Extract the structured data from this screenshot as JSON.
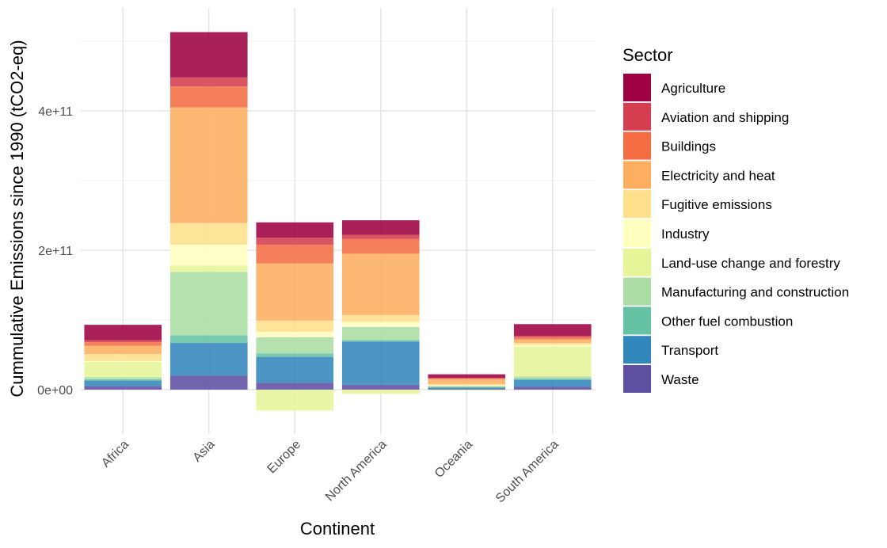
{
  "chart_data": {
    "type": "bar",
    "stacked": true,
    "xlabel": "Continent",
    "ylabel": "Cummulative Emissions since 1990 (tCO2-eq)",
    "ylim": [
      -40000000000,
      530000000000
    ],
    "y_ticks": [
      0,
      200000000000,
      400000000000
    ],
    "y_tick_labels": [
      "0e+00",
      "2e+11",
      "4e+11"
    ],
    "grid": true,
    "legend": {
      "title": "Sector",
      "placement": "right"
    },
    "categories": [
      "Africa",
      "Asia",
      "Europe",
      "North America",
      "Oceania",
      "South America"
    ],
    "series": [
      {
        "name": "Agriculture",
        "color": "#9E0142",
        "values": [
          22000000000,
          65000000000,
          22000000000,
          21000000000,
          5000000000,
          17000000000
        ]
      },
      {
        "name": "Aviation and shipping",
        "color": "#D53E4F",
        "values": [
          3000000000,
          13000000000,
          10000000000,
          6000000000,
          1000000000,
          2000000000
        ]
      },
      {
        "name": "Buildings",
        "color": "#F46D43",
        "values": [
          5000000000,
          30000000000,
          27000000000,
          21000000000,
          1000000000,
          3000000000
        ]
      },
      {
        "name": "Electricity and heat",
        "color": "#FDAE61",
        "values": [
          12000000000,
          166000000000,
          82000000000,
          88000000000,
          7000000000,
          5000000000
        ]
      },
      {
        "name": "Fugitive emissions",
        "color": "#FEE08B",
        "values": [
          10000000000,
          31000000000,
          16000000000,
          10000000000,
          2000000000,
          3000000000
        ]
      },
      {
        "name": "Industry",
        "color": "#FFFFBF",
        "values": [
          1000000000,
          30000000000,
          8000000000,
          7000000000,
          1000000000,
          2000000000
        ]
      },
      {
        "name": "Land-use change and forestry",
        "color": "#E6F598",
        "values": [
          22000000000,
          9000000000,
          -30000000000,
          -6000000000,
          -1000000000,
          43000000000
        ]
      },
      {
        "name": "Manufacturing and construction",
        "color": "#ABDDA4",
        "values": [
          3000000000,
          91000000000,
          23000000000,
          19000000000,
          1000000000,
          3000000000
        ]
      },
      {
        "name": "Other fuel combustion",
        "color": "#66C2A5",
        "values": [
          2000000000,
          11000000000,
          5000000000,
          2000000000,
          1000000000,
          2000000000
        ]
      },
      {
        "name": "Transport",
        "color": "#3288BD",
        "values": [
          8000000000,
          47000000000,
          37000000000,
          62000000000,
          2000000000,
          10000000000
        ]
      },
      {
        "name": "Waste",
        "color": "#5E4FA2",
        "values": [
          5000000000,
          20000000000,
          10000000000,
          7000000000,
          1000000000,
          4000000000
        ]
      }
    ]
  }
}
